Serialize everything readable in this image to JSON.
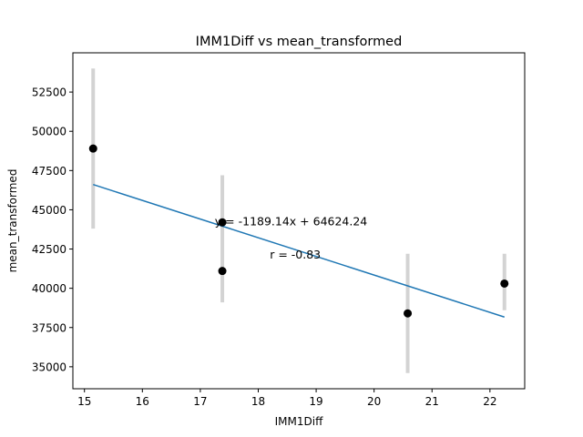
{
  "chart_data": {
    "type": "scatter",
    "title": "IMM1Diff vs mean_transformed",
    "xlabel": "IMM1Diff",
    "ylabel": "mean_transformed",
    "xlim": [
      14.8,
      22.6
    ],
    "ylim": [
      33600,
      55000
    ],
    "xticks": [
      15,
      16,
      17,
      18,
      19,
      20,
      21,
      22
    ],
    "yticks": [
      35000,
      37500,
      40000,
      42500,
      45000,
      47500,
      50000,
      52500
    ],
    "grid": false,
    "points": [
      {
        "x": 15.15,
        "y": 48900,
        "err_low": 43800,
        "err_high": 54000
      },
      {
        "x": 17.38,
        "y": 44200,
        "err_low": 39100,
        "err_high": 47200
      },
      {
        "x": 17.38,
        "y": 41100,
        "err_low": null,
        "err_high": null
      },
      {
        "x": 20.58,
        "y": 38400,
        "err_low": 34600,
        "err_high": 42200
      },
      {
        "x": 22.25,
        "y": 40300,
        "err_low": 38600,
        "err_high": 42200
      }
    ],
    "trendline": {
      "slope": -1189.14,
      "intercept": 64624.24,
      "x_range": [
        15.15,
        22.25
      ],
      "color": "#1f77b4"
    },
    "annotations": [
      {
        "text": "y = -1189.14x + 64624.24",
        "x": 17.25,
        "y": 44000
      },
      {
        "text": "r = -0.83",
        "x": 18.2,
        "y": 41900
      }
    ],
    "point_color": "#000000",
    "errorbar_color": "#d3d3d3"
  }
}
